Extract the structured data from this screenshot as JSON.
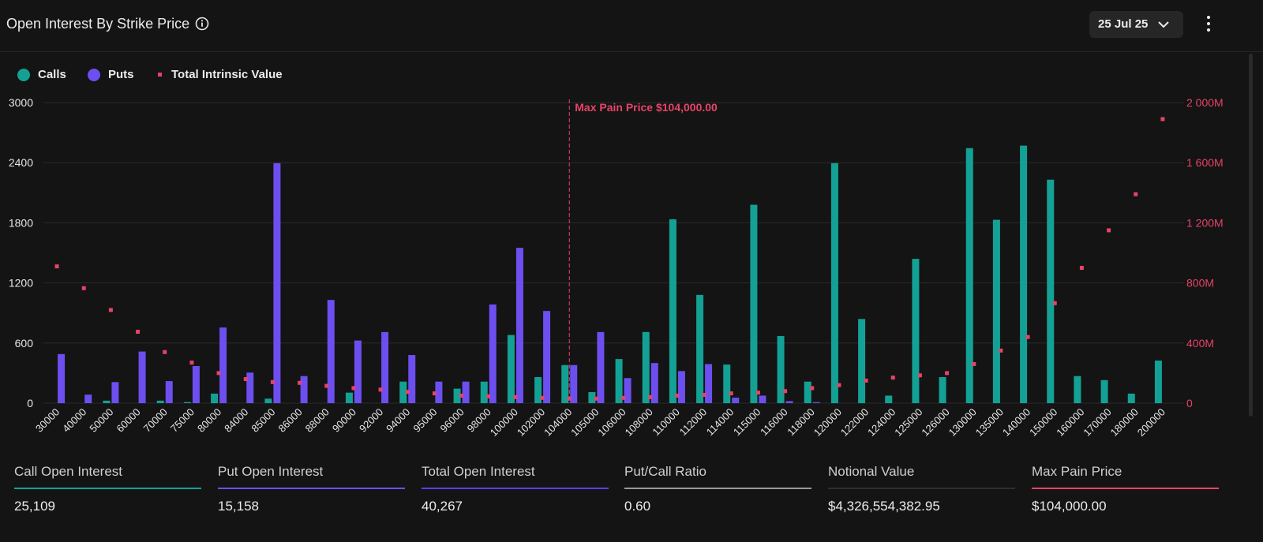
{
  "header": {
    "title": "Open Interest By Strike Price",
    "date_selector": "25 Jul 25"
  },
  "legend": [
    {
      "label": "Calls",
      "color": "#14a195",
      "shape": "dot"
    },
    {
      "label": "Puts",
      "color": "#6d4ff0",
      "shape": "dot"
    },
    {
      "label": "Total Intrinsic Value",
      "color": "#e64467",
      "shape": "square"
    }
  ],
  "chart_data": {
    "type": "bar",
    "categories": [
      "30000",
      "40000",
      "50000",
      "60000",
      "70000",
      "75000",
      "80000",
      "84000",
      "85000",
      "86000",
      "88000",
      "90000",
      "92000",
      "94000",
      "95000",
      "96000",
      "98000",
      "100000",
      "102000",
      "104000",
      "105000",
      "106000",
      "108000",
      "110000",
      "112000",
      "114000",
      "115000",
      "116000",
      "118000",
      "120000",
      "122000",
      "124000",
      "125000",
      "126000",
      "130000",
      "135000",
      "140000",
      "150000",
      "160000",
      "170000",
      "180000",
      "200000"
    ],
    "series": [
      {
        "name": "Calls",
        "color": "#14a195",
        "axis": "left",
        "values": [
          0,
          0,
          25,
          0,
          25,
          10,
          95,
          0,
          45,
          0,
          0,
          105,
          0,
          215,
          0,
          145,
          215,
          680,
          260,
          380,
          110,
          440,
          710,
          1835,
          1080,
          385,
          1980,
          670,
          215,
          2395,
          840,
          75,
          1440,
          260,
          2545,
          1830,
          2570,
          2230,
          270,
          230,
          95,
          425
        ]
      },
      {
        "name": "Puts",
        "color": "#6d4ff0",
        "axis": "left",
        "values": [
          490,
          85,
          210,
          515,
          220,
          370,
          755,
          305,
          2395,
          270,
          1030,
          625,
          710,
          480,
          215,
          215,
          985,
          1550,
          920,
          380,
          710,
          250,
          400,
          320,
          390,
          55,
          75,
          20,
          10,
          0,
          0,
          0,
          0,
          0,
          0,
          0,
          0,
          0,
          0,
          0,
          0,
          0
        ]
      },
      {
        "name": "Total Intrinsic Value",
        "color": "#e64467",
        "axis": "right",
        "kind": "marker",
        "values": [
          910000000,
          765000000,
          620000000,
          475000000,
          340000000,
          270000000,
          200000000,
          160000000,
          140000000,
          135000000,
          115000000,
          100000000,
          90000000,
          75000000,
          65000000,
          50000000,
          45000000,
          40000000,
          35000000,
          30000000,
          30000000,
          35000000,
          40000000,
          50000000,
          55000000,
          65000000,
          70000000,
          80000000,
          100000000,
          120000000,
          150000000,
          170000000,
          185000000,
          200000000,
          260000000,
          350000000,
          440000000,
          665000000,
          900000000,
          1150000000,
          1390000000,
          1890000000
        ]
      }
    ],
    "left_axis": {
      "min": 0,
      "max": 3000,
      "ticks": [
        0,
        600,
        1200,
        1800,
        2400,
        3000
      ],
      "tick_labels": [
        "0",
        "600",
        "1200",
        "1800",
        "2400",
        "3000"
      ]
    },
    "right_axis": {
      "min": 0,
      "max": 2000000000,
      "ticks": [
        0,
        400000000,
        800000000,
        1200000000,
        1600000000,
        2000000000
      ],
      "tick_labels": [
        "0",
        "400M",
        "800M",
        "1 200M",
        "1 600M",
        "2 000M"
      ],
      "color": "#e64467"
    },
    "annotation": {
      "label": "Max Pain Price $104,000.00",
      "category": "104000",
      "color": "#e64467"
    },
    "grid": true
  },
  "stats": [
    {
      "label": "Call Open Interest",
      "value": "25,109",
      "color": "#14a195"
    },
    {
      "label": "Put Open Interest",
      "value": "15,158",
      "color": "#6d4ff0"
    },
    {
      "label": "Total Open Interest",
      "value": "40,267",
      "color": "#5b3fe6"
    },
    {
      "label": "Put/Call Ratio",
      "value": "0.60",
      "color": "#9a9a9a"
    },
    {
      "label": "Notional Value",
      "value": "$4,326,554,382.95",
      "color": "#2e2e2e"
    },
    {
      "label": "Max Pain Price",
      "value": "$104,000.00",
      "color": "#e64467"
    }
  ]
}
